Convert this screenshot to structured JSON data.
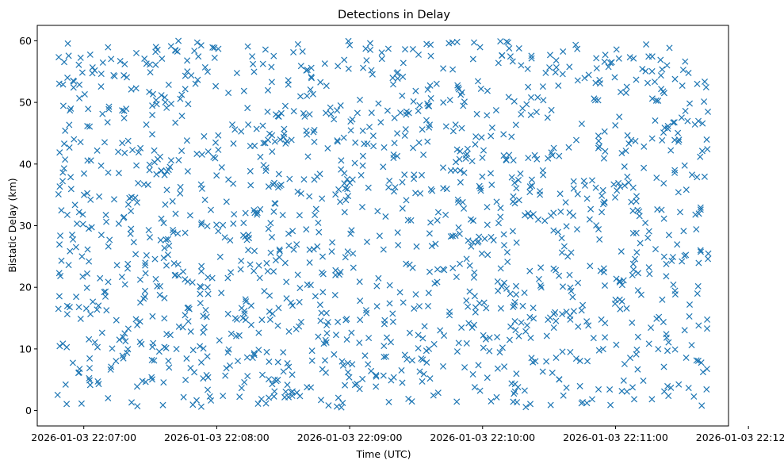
{
  "chart_data": {
    "type": "scatter",
    "title": "Detections in Delay",
    "xlabel": "Time (UTC)",
    "ylabel": "Bistatic Delay (km)",
    "marker": "x",
    "color": "#1f77b4",
    "grid": false,
    "legend": "none",
    "xlim": [
      "2026-01-03 22:06:39",
      "2026-01-03 22:11:51"
    ],
    "ylim": [
      -2.5,
      62.5
    ],
    "xticks": [
      "2026-01-03 22:07:00",
      "2026-01-03 22:08:00",
      "2026-01-03 22:09:00",
      "2026-01-03 22:10:00",
      "2026-01-03 22:11:00",
      "2026-01-03 22:12:00"
    ],
    "yticks": [
      "0",
      "10",
      "20",
      "30",
      "40",
      "50",
      "60"
    ],
    "x_start": "2026-01-03 22:06:48",
    "x_end": "2026-01-03 22:11:42",
    "point_count": 1500,
    "note": "Approximately 1500 detections uniformly spread over 0–60 km between 22:06:48 and 22:11:42."
  }
}
